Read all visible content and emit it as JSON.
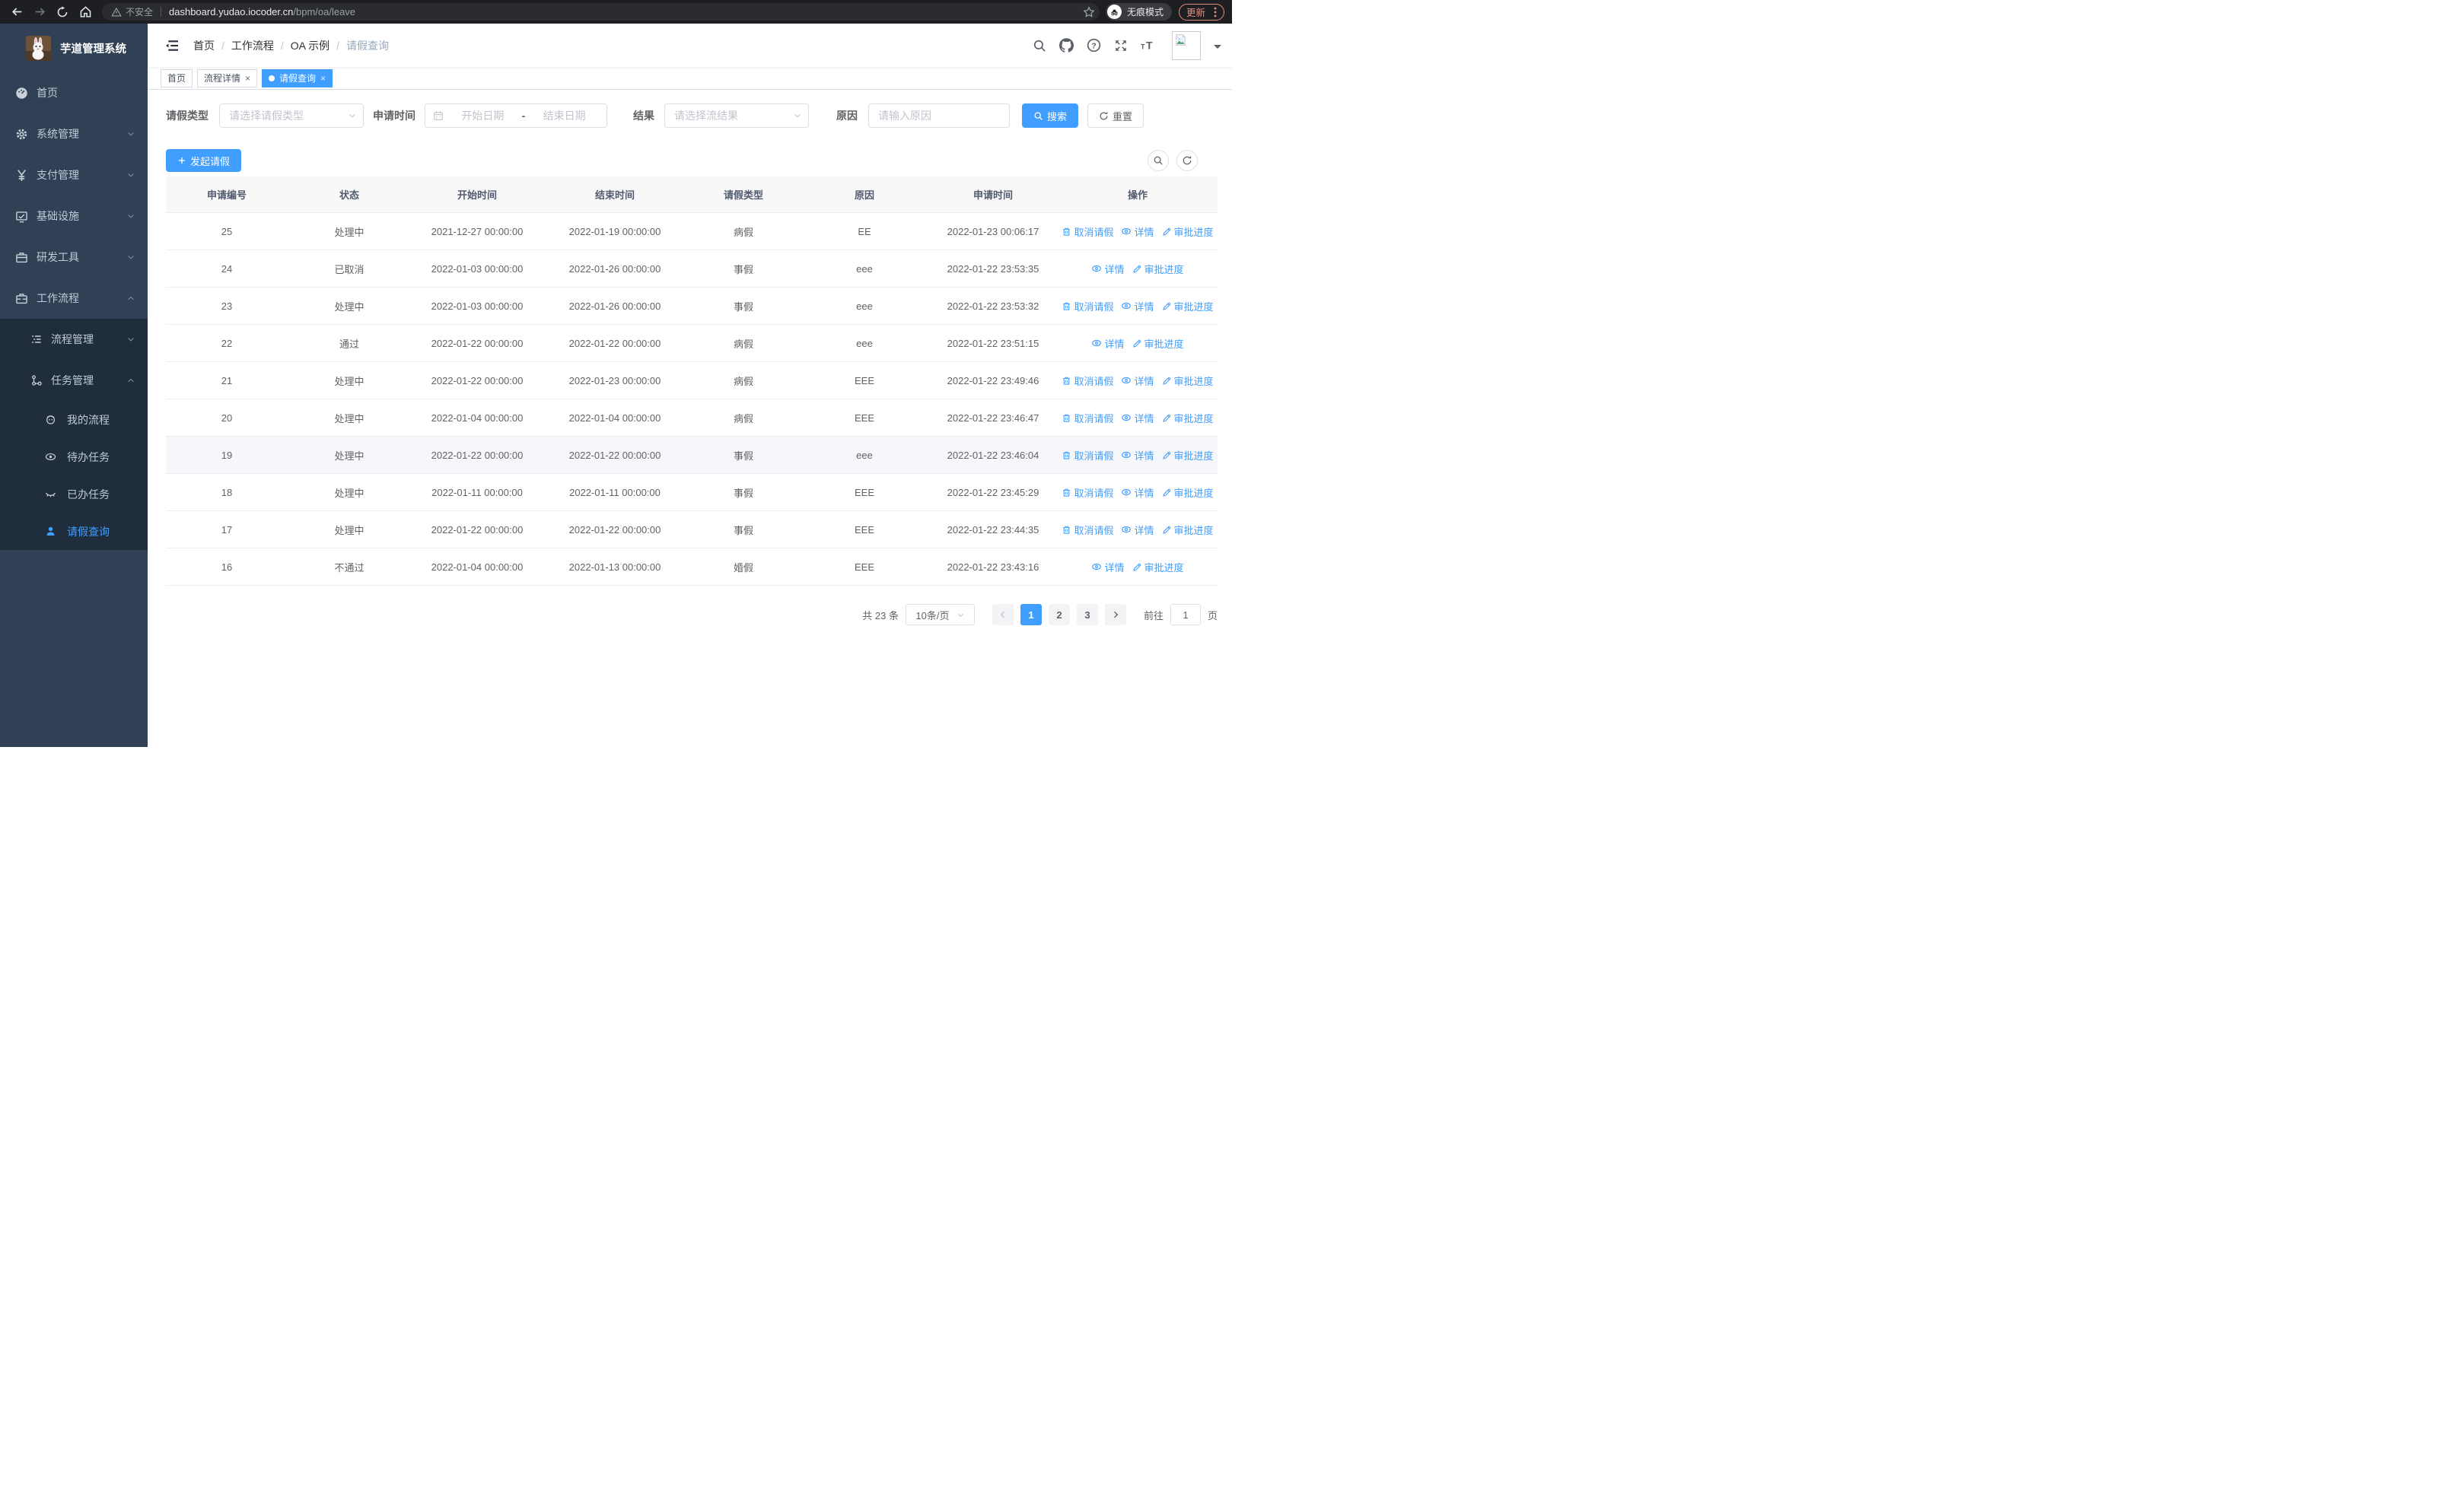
{
  "browser": {
    "security_label": "不安全",
    "url_host": "dashboard.yudao.iocoder.cn",
    "url_path": "/bpm/oa/leave",
    "incognito_label": "无痕模式",
    "update_label": "更新"
  },
  "sidebar": {
    "title": "芋道管理系统",
    "items": [
      {
        "label": "首页",
        "icon": "dashboard-icon",
        "level": 1
      },
      {
        "label": "系统管理",
        "icon": "gear-icon",
        "level": 1,
        "chevron": "down"
      },
      {
        "label": "支付管理",
        "icon": "yen-icon",
        "level": 1,
        "chevron": "down"
      },
      {
        "label": "基础设施",
        "icon": "infra-icon",
        "level": 1,
        "chevron": "down"
      },
      {
        "label": "研发工具",
        "icon": "toolbox-icon",
        "level": 1,
        "chevron": "down"
      },
      {
        "label": "工作流程",
        "icon": "workflow-icon",
        "level": 1,
        "chevron": "up",
        "expanded": true
      },
      {
        "label": "流程管理",
        "icon": "process-icon",
        "level": 2,
        "chevron": "down"
      },
      {
        "label": "任务管理",
        "icon": "task-icon",
        "level": 2,
        "chevron": "up",
        "expanded": true
      },
      {
        "label": "我的流程",
        "icon": "my-process-icon",
        "level": 3
      },
      {
        "label": "待办任务",
        "icon": "todo-icon",
        "level": 3
      },
      {
        "label": "已办任务",
        "icon": "done-icon",
        "level": 3
      },
      {
        "label": "请假查询",
        "icon": "leave-user-icon",
        "level": 3,
        "active": true
      }
    ]
  },
  "header": {
    "breadcrumb": [
      "首页",
      "工作流程",
      "OA 示例",
      "请假查询"
    ]
  },
  "tabs": [
    {
      "label": "首页",
      "closable": false,
      "active": false
    },
    {
      "label": "流程详情",
      "closable": true,
      "active": false
    },
    {
      "label": "请假查询",
      "closable": true,
      "active": true
    }
  ],
  "filters": {
    "type_label": "请假类型",
    "type_placeholder": "请选择请假类型",
    "time_label": "申请时间",
    "start_placeholder": "开始日期",
    "range_separator": "-",
    "end_placeholder": "结束日期",
    "result_label": "结果",
    "result_placeholder": "请选择流结果",
    "reason_label": "原因",
    "reason_placeholder": "请输入原因",
    "search_label": "搜索",
    "reset_label": "重置"
  },
  "toolbar": {
    "create_label": "发起请假"
  },
  "table": {
    "columns": [
      "申请编号",
      "状态",
      "开始时间",
      "结束时间",
      "请假类型",
      "原因",
      "申请时间",
      "操作"
    ],
    "action_defs": [
      {
        "key": "cancel",
        "label": "取消请假",
        "icon": "delete-icon"
      },
      {
        "key": "detail",
        "label": "详情",
        "icon": "eye-icon"
      },
      {
        "key": "progress",
        "label": "审批进度",
        "icon": "edit-icon"
      }
    ],
    "rows": [
      {
        "id": "25",
        "status": "处理中",
        "start": "2021-12-27 00:00:00",
        "end": "2022-01-19 00:00:00",
        "type": "病假",
        "reason": "EE",
        "apply_time": "2022-01-23 00:06:17",
        "actions": [
          "cancel",
          "detail",
          "progress"
        ],
        "hover": false
      },
      {
        "id": "24",
        "status": "已取消",
        "start": "2022-01-03 00:00:00",
        "end": "2022-01-26 00:00:00",
        "type": "事假",
        "reason": "eee",
        "apply_time": "2022-01-22 23:53:35",
        "actions": [
          "detail",
          "progress"
        ],
        "hover": false
      },
      {
        "id": "23",
        "status": "处理中",
        "start": "2022-01-03 00:00:00",
        "end": "2022-01-26 00:00:00",
        "type": "事假",
        "reason": "eee",
        "apply_time": "2022-01-22 23:53:32",
        "actions": [
          "cancel",
          "detail",
          "progress"
        ],
        "hover": false
      },
      {
        "id": "22",
        "status": "通过",
        "start": "2022-01-22 00:00:00",
        "end": "2022-01-22 00:00:00",
        "type": "病假",
        "reason": "eee",
        "apply_time": "2022-01-22 23:51:15",
        "actions": [
          "detail",
          "progress"
        ],
        "hover": false
      },
      {
        "id": "21",
        "status": "处理中",
        "start": "2022-01-22 00:00:00",
        "end": "2022-01-23 00:00:00",
        "type": "病假",
        "reason": "EEE",
        "apply_time": "2022-01-22 23:49:46",
        "actions": [
          "cancel",
          "detail",
          "progress"
        ],
        "hover": false
      },
      {
        "id": "20",
        "status": "处理中",
        "start": "2022-01-04 00:00:00",
        "end": "2022-01-04 00:00:00",
        "type": "病假",
        "reason": "EEE",
        "apply_time": "2022-01-22 23:46:47",
        "actions": [
          "cancel",
          "detail",
          "progress"
        ],
        "hover": false
      },
      {
        "id": "19",
        "status": "处理中",
        "start": "2022-01-22 00:00:00",
        "end": "2022-01-22 00:00:00",
        "type": "事假",
        "reason": "eee",
        "apply_time": "2022-01-22 23:46:04",
        "actions": [
          "cancel",
          "detail",
          "progress"
        ],
        "hover": true
      },
      {
        "id": "18",
        "status": "处理中",
        "start": "2022-01-11 00:00:00",
        "end": "2022-01-11 00:00:00",
        "type": "事假",
        "reason": "EEE",
        "apply_time": "2022-01-22 23:45:29",
        "actions": [
          "cancel",
          "detail",
          "progress"
        ],
        "hover": false
      },
      {
        "id": "17",
        "status": "处理中",
        "start": "2022-01-22 00:00:00",
        "end": "2022-01-22 00:00:00",
        "type": "事假",
        "reason": "EEE",
        "apply_time": "2022-01-22 23:44:35",
        "actions": [
          "cancel",
          "detail",
          "progress"
        ],
        "hover": false
      },
      {
        "id": "16",
        "status": "不通过",
        "start": "2022-01-04 00:00:00",
        "end": "2022-01-13 00:00:00",
        "type": "婚假",
        "reason": "EEE",
        "apply_time": "2022-01-22 23:43:16",
        "actions": [
          "detail",
          "progress"
        ],
        "hover": false
      }
    ]
  },
  "pagination": {
    "total_label": "共 23 条",
    "page_size_value": "10条/页",
    "pages": [
      "1",
      "2",
      "3"
    ],
    "active_page": "1",
    "goto_label": "前往",
    "goto_value": "1",
    "goto_unit": "页"
  },
  "colors": {
    "primary": "#409eff",
    "sidebar_bg": "#304156",
    "submenu_bg": "#1f2d3d",
    "sidebar_text": "#bfcbd9",
    "table_header_bg": "#f8f8f9",
    "row_border": "#ebeef5",
    "update_accent": "#e98a7e"
  }
}
